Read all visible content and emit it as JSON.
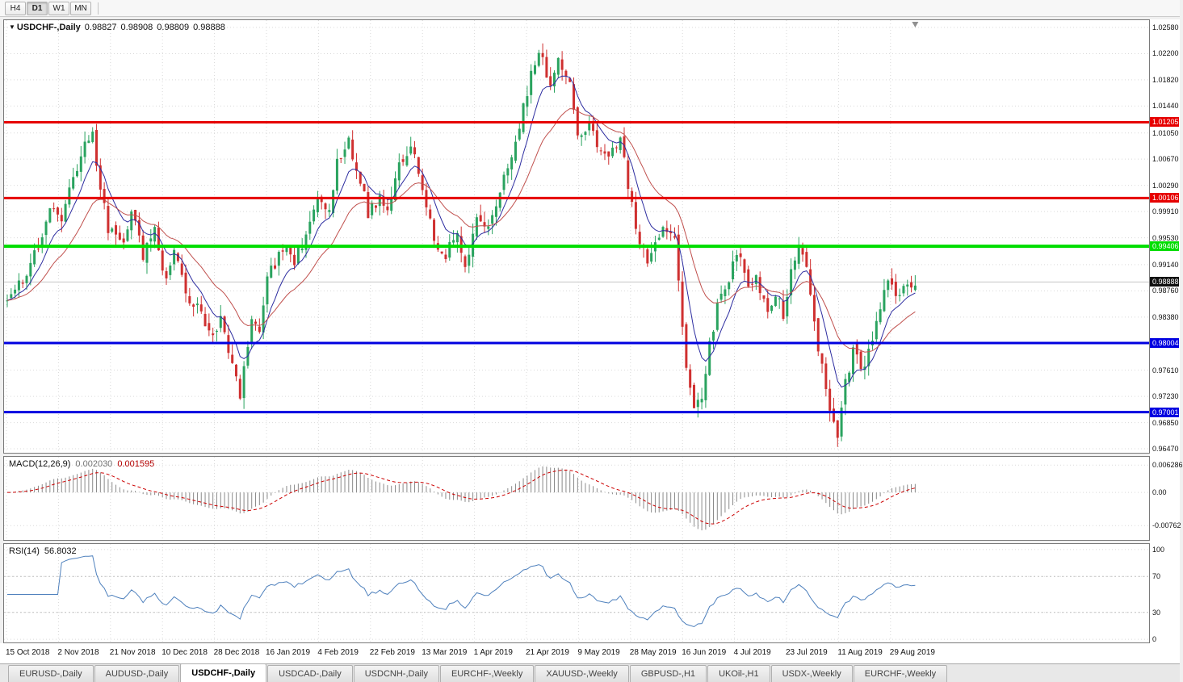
{
  "toolbar": {
    "timeframes": [
      {
        "label": "H4",
        "active": false
      },
      {
        "label": "D1",
        "active": true
      },
      {
        "label": "W1",
        "active": false
      },
      {
        "label": "MN",
        "active": false
      }
    ]
  },
  "chart": {
    "dropdown_glyph": "▼",
    "symbol_period": "USDCHF-,Daily",
    "ohlc": {
      "open": "0.98827",
      "high": "0.98908",
      "low": "0.98809",
      "close": "0.98888"
    }
  },
  "chart_data": {
    "type": "candlestick",
    "title": "USDCHF-,Daily",
    "symbol": "USDCHF",
    "timeframe": "Daily",
    "candle_count": 235,
    "up_color": "#2aa35f",
    "down_color": "#cf3030",
    "y_axis": {
      "top": 1.02685,
      "bottom": 0.96412,
      "tick_labels": [
        "1.02580",
        "1.02200",
        "1.01820",
        "1.01440",
        "1.01050",
        "1.00670",
        "1.00290",
        "0.99910",
        "0.99530",
        "0.99140",
        "0.98760",
        "0.98380",
        "0.97610",
        "0.97230",
        "0.96850",
        "0.96470"
      ]
    },
    "x_axis": {
      "tick_labels": [
        "15 Oct 2018",
        "2 Nov 2018",
        "21 Nov 2018",
        "10 Dec 2018",
        "28 Dec 2018",
        "16 Jan 2019",
        "4 Feb 2019",
        "22 Feb 2019",
        "13 Mar 2019",
        "1 Apr 2019",
        "21 Apr 2019",
        "9 May 2019",
        "28 May 2019",
        "16 Jun 2019",
        "4 Jul 2019",
        "23 Jul 2019",
        "11 Aug 2019",
        "29 Aug 2019"
      ]
    },
    "price_path_anchors": [
      [
        0,
        0.9862
      ],
      [
        5,
        0.99
      ],
      [
        11,
        0.999
      ],
      [
        14,
        0.9985
      ],
      [
        17,
        1.004
      ],
      [
        20,
        1.009
      ],
      [
        22,
        1.01
      ],
      [
        24,
        1.003
      ],
      [
        26,
        0.996
      ],
      [
        30,
        0.995
      ],
      [
        32,
        0.999
      ],
      [
        35,
        0.993
      ],
      [
        38,
        0.996
      ],
      [
        41,
        0.989
      ],
      [
        43,
        0.994
      ],
      [
        46,
        0.987
      ],
      [
        49,
        0.9855
      ],
      [
        53,
        0.9805
      ],
      [
        55,
        0.984
      ],
      [
        58,
        0.977
      ],
      [
        60,
        0.9722
      ],
      [
        63,
        0.9835
      ],
      [
        65,
        0.9825
      ],
      [
        67,
        0.9895
      ],
      [
        71,
        0.9935
      ],
      [
        74,
        0.992
      ],
      [
        77,
        0.9955
      ],
      [
        80,
        1.0005
      ],
      [
        83,
        0.9995
      ],
      [
        85,
        1.006
      ],
      [
        88,
        1.009
      ],
      [
        91,
        1.004
      ],
      [
        93,
        0.999
      ],
      [
        96,
        1.001
      ],
      [
        98,
        0.999
      ],
      [
        101,
        1.006
      ],
      [
        104,
        1.0085
      ],
      [
        107,
        1.003
      ],
      [
        110,
        0.9945
      ],
      [
        113,
        0.993
      ],
      [
        116,
        0.9955
      ],
      [
        118,
        0.9915
      ],
      [
        121,
        0.998
      ],
      [
        124,
        0.997
      ],
      [
        126,
        1.0005
      ],
      [
        129,
        1.0055
      ],
      [
        132,
        1.012
      ],
      [
        135,
        1.019
      ],
      [
        137,
        1.0225
      ],
      [
        140,
        1.0175
      ],
      [
        142,
        1.0205
      ],
      [
        145,
        1.018
      ],
      [
        147,
        1.0095
      ],
      [
        150,
        1.012
      ],
      [
        152,
        1.008
      ],
      [
        155,
        1.0068
      ],
      [
        158,
        1.01
      ],
      [
        160,
        1.003
      ],
      [
        163,
        0.9945
      ],
      [
        165,
        0.9915
      ],
      [
        167,
        0.9945
      ],
      [
        170,
        0.9968
      ],
      [
        172,
        0.9955
      ],
      [
        175,
        0.976
      ],
      [
        177,
        0.9705
      ],
      [
        179,
        0.9725
      ],
      [
        181,
        0.9795
      ],
      [
        183,
        0.9855
      ],
      [
        185,
        0.9882
      ],
      [
        187,
        0.9912
      ],
      [
        189,
        0.9932
      ],
      [
        191,
        0.988
      ],
      [
        193,
        0.9892
      ],
      [
        196,
        0.9852
      ],
      [
        198,
        0.9872
      ],
      [
        200,
        0.9842
      ],
      [
        202,
        0.9902
      ],
      [
        204,
        0.9948
      ],
      [
        206,
        0.9918
      ],
      [
        208,
        0.983
      ],
      [
        210,
        0.9762
      ],
      [
        212,
        0.9705
      ],
      [
        214,
        0.9668
      ],
      [
        216,
        0.9742
      ],
      [
        218,
        0.979
      ],
      [
        221,
        0.9762
      ],
      [
        223,
        0.9812
      ],
      [
        225,
        0.9845
      ],
      [
        227,
        0.9898
      ],
      [
        229,
        0.9862
      ],
      [
        231,
        0.988
      ],
      [
        233,
        0.9885
      ],
      [
        234,
        0.9889
      ]
    ],
    "noise": {
      "seed": 11,
      "close": 0.0009,
      "gap": 0.0005,
      "wick": 0.0016
    },
    "moving_averages": [
      {
        "period": 8,
        "color": "#2d2da0"
      },
      {
        "period": 21,
        "color": "#c0504d"
      }
    ],
    "h_lines": [
      {
        "price": 1.01205,
        "label": "1.01205",
        "color": "#e60000",
        "width": 3
      },
      {
        "price": 1.00106,
        "label": "1.00106",
        "color": "#e60000",
        "width": 3
      },
      {
        "price": 0.99406,
        "label": "0.99406",
        "color": "#00dd00",
        "width": 4
      },
      {
        "price": 0.98004,
        "label": "0.98004",
        "color": "#0000e0",
        "width": 3
      },
      {
        "price": 0.97001,
        "label": "0.97001",
        "color": "#0000e0",
        "width": 3
      }
    ],
    "current_price": {
      "value": 0.98888,
      "label": "0.98888",
      "bg": "#111111"
    },
    "indicators": {
      "macd": {
        "name": "MACD(12,26,9)",
        "fast": 12,
        "slow": 26,
        "signal": 9,
        "value_main": "0.002030",
        "value_signal": "0.001595",
        "hist_color": "#8a8a8a",
        "signal_color": "#cc0000",
        "axis": {
          "top": 0.00818,
          "bottom": -0.01091,
          "tick_labels": [
            "0.006286",
            "0.00",
            "-0.00762"
          ],
          "tick_values": [
            0.006286,
            0,
            -0.00762
          ]
        }
      },
      "rsi": {
        "name": "RSI(14)",
        "period": 14,
        "value": "56.8032",
        "color": "#4f81bd",
        "levels": [
          70,
          30
        ],
        "axis": {
          "top": 106.2,
          "bottom": -3.5,
          "tick_labels": [
            "100",
            "70",
            "30",
            "0"
          ],
          "tick_values": [
            100,
            70,
            30,
            0
          ]
        }
      }
    }
  },
  "tab_bar": {
    "tabs": [
      {
        "label": "EURUSD-,Daily",
        "active": false
      },
      {
        "label": "AUDUSD-,Daily",
        "active": false
      },
      {
        "label": "USDCHF-,Daily",
        "active": true
      },
      {
        "label": "USDCAD-,Daily",
        "active": false
      },
      {
        "label": "USDCNH-,Daily",
        "active": false
      },
      {
        "label": "EURCHF-,Weekly",
        "active": false
      },
      {
        "label": "XAUUSD-,Weekly",
        "active": false
      },
      {
        "label": "GBPUSD-,H1",
        "active": false
      },
      {
        "label": "UKOil-,H1",
        "active": false
      },
      {
        "label": "USDX-,Weekly",
        "active": false
      },
      {
        "label": "EURCHF-,Weekly",
        "active": false
      }
    ]
  }
}
